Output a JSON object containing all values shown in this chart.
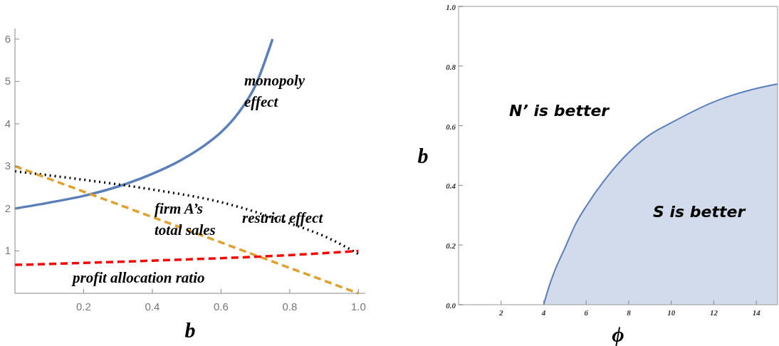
{
  "chart_data": [
    {
      "type": "line",
      "xlabel": "b",
      "xlim": [
        0,
        1.02
      ],
      "ylim": [
        0,
        6.25
      ],
      "xticks": [
        0.2,
        0.4,
        0.6,
        0.8,
        {
          "value": 1,
          "label": "1.0"
        }
      ],
      "yticks": [
        1,
        2,
        3,
        4,
        5,
        6
      ],
      "series": [
        {
          "color": "#5b7fb8",
          "line_style": "solid",
          "x": [
            0,
            0.1,
            0.2,
            0.3,
            0.4,
            0.5,
            0.55,
            0.6,
            0.65,
            0.7,
            0.75
          ],
          "values": [
            2,
            2.14,
            2.3,
            2.52,
            2.82,
            3.22,
            3.48,
            3.8,
            4.25,
            4.9,
            6
          ]
        },
        {
          "color": "#000000",
          "line_style": "dotted",
          "x": [
            0,
            0.2,
            0.4,
            0.6,
            0.8,
            0.9,
            1.0
          ],
          "values": [
            2.88,
            2.68,
            2.45,
            2.15,
            1.65,
            1.35,
            0.93
          ]
        },
        {
          "color": "#e0a030",
          "line_style": "dashed",
          "x": [
            0,
            1.0
          ],
          "values": [
            3,
            0
          ]
        },
        {
          "color": "#ff0000",
          "line_style": "dashed",
          "x": [
            0,
            0.25,
            0.5,
            0.75,
            1.0
          ],
          "values": [
            0.67,
            0.73,
            0.8,
            0.88,
            1.0
          ]
        }
      ],
      "annotations": [
        "monopoly\neffect",
        "restrict effect",
        "firm A’s\ntotal sales",
        "profit allocation ratio"
      ]
    },
    {
      "type": "area",
      "xlabel": "ϕ",
      "ylabel": "b",
      "xlim": [
        0,
        15
      ],
      "ylim": [
        0,
        1
      ],
      "xticks": [
        2,
        4,
        6,
        8,
        10,
        12,
        14
      ],
      "yticks": [
        {
          "value": 0,
          "label": "0.0"
        },
        0.2,
        0.4,
        0.6,
        0.8,
        {
          "value": 1,
          "label": "1.0"
        }
      ],
      "series": [
        {
          "color": "#5b7fb8",
          "x": [
            4,
            4.25,
            4.5,
            5,
            5.5,
            6,
            7,
            8,
            9,
            10,
            12,
            14,
            15
          ],
          "values": [
            0,
            0.06,
            0.11,
            0.19,
            0.27,
            0.33,
            0.43,
            0.51,
            0.57,
            0.61,
            0.68,
            0.725,
            0.74
          ]
        }
      ],
      "annotations": [
        "N’ is better",
        "S is better"
      ]
    }
  ]
}
